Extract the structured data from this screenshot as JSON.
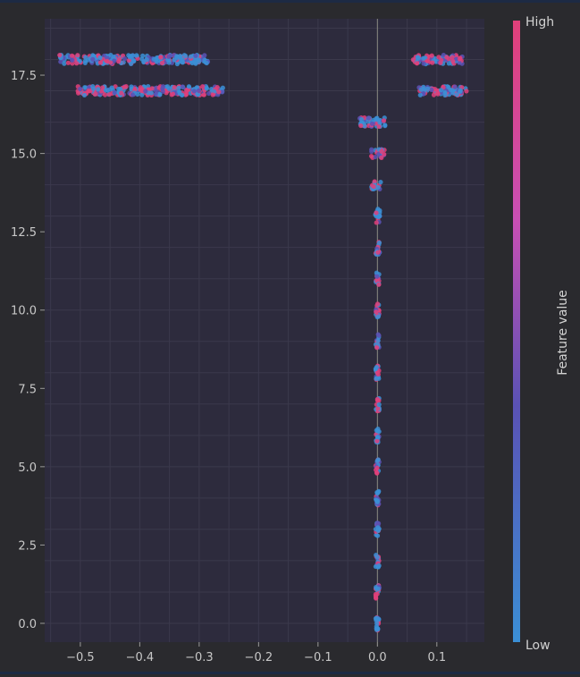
{
  "chart_data": {
    "type": "scatter",
    "title": "",
    "xlabel": "",
    "ylabel": "",
    "xlim": [
      -0.56,
      0.18
    ],
    "ylim": [
      -0.6,
      19.3
    ],
    "x_ticks": [
      -0.5,
      -0.4,
      -0.3,
      -0.2,
      -0.1,
      0.0,
      0.1
    ],
    "x_tick_labels": [
      "−0.5",
      "−0.4",
      "−0.3",
      "−0.2",
      "−0.1",
      "0.0",
      "0.1"
    ],
    "y_ticks": [
      0.0,
      2.5,
      5.0,
      7.5,
      10.0,
      12.5,
      15.0,
      17.5
    ],
    "y_tick_labels": [
      "0.0",
      "2.5",
      "5.0",
      "7.5",
      "10.0",
      "12.5",
      "15.0",
      "17.5"
    ],
    "grid": true,
    "zero_line": true,
    "colorbar": {
      "label": "Feature value",
      "high_label": "High",
      "low_label": "Low",
      "colors": [
        "#3b8fd6",
        "#5a52b5",
        "#c94fb4",
        "#e0407a"
      ]
    },
    "rows": [
      {
        "y": 18,
        "clusters": [
          {
            "x_min": -0.535,
            "x_max": -0.285,
            "mix": 0.25
          },
          {
            "x_min": 0.06,
            "x_max": 0.145,
            "mix": 0.45
          }
        ]
      },
      {
        "y": 17,
        "clusters": [
          {
            "x_min": -0.505,
            "x_max": -0.26,
            "mix": 0.4
          },
          {
            "x_min": 0.07,
            "x_max": 0.15,
            "mix": 0.35
          }
        ]
      },
      {
        "y": 16,
        "clusters": [
          {
            "x_min": -0.03,
            "x_max": 0.015,
            "mix": 0.25
          }
        ]
      },
      {
        "y": 15,
        "clusters": [
          {
            "x_min": -0.012,
            "x_max": 0.012,
            "mix": 0.5
          }
        ]
      },
      {
        "y": 14,
        "clusters": [
          {
            "x_min": -0.01,
            "x_max": 0.006,
            "mix": 0.5
          }
        ]
      },
      {
        "y": 13,
        "clusters": [
          {
            "x_min": -0.004,
            "x_max": 0.004,
            "mix": 0.3
          }
        ]
      },
      {
        "y": 12,
        "clusters": [
          {
            "x_min": -0.004,
            "x_max": 0.004,
            "mix": 0.3
          }
        ]
      },
      {
        "y": 11,
        "clusters": [
          {
            "x_min": -0.003,
            "x_max": 0.003,
            "mix": 0.3
          }
        ]
      },
      {
        "y": 10,
        "clusters": [
          {
            "x_min": -0.003,
            "x_max": 0.003,
            "mix": 0.3
          }
        ]
      },
      {
        "y": 9,
        "clusters": [
          {
            "x_min": -0.003,
            "x_max": 0.003,
            "mix": 0.35
          }
        ]
      },
      {
        "y": 8,
        "clusters": [
          {
            "x_min": -0.003,
            "x_max": 0.003,
            "mix": 0.3
          }
        ]
      },
      {
        "y": 7,
        "clusters": [
          {
            "x_min": -0.003,
            "x_max": 0.003,
            "mix": 0.35
          }
        ]
      },
      {
        "y": 6,
        "clusters": [
          {
            "x_min": -0.003,
            "x_max": 0.003,
            "mix": 0.35
          }
        ]
      },
      {
        "y": 5,
        "clusters": [
          {
            "x_min": -0.003,
            "x_max": 0.003,
            "mix": 0.3
          }
        ]
      },
      {
        "y": 4,
        "clusters": [
          {
            "x_min": -0.003,
            "x_max": 0.003,
            "mix": 0.3
          }
        ]
      },
      {
        "y": 3,
        "clusters": [
          {
            "x_min": -0.003,
            "x_max": 0.003,
            "mix": 0.2
          }
        ]
      },
      {
        "y": 2,
        "clusters": [
          {
            "x_min": -0.003,
            "x_max": 0.003,
            "mix": 0.2
          }
        ]
      },
      {
        "y": 1,
        "clusters": [
          {
            "x_min": -0.003,
            "x_max": 0.003,
            "mix": 0.2
          }
        ]
      },
      {
        "y": 0,
        "clusters": [
          {
            "x_min": -0.003,
            "x_max": 0.003,
            "mix": 0.2
          }
        ]
      }
    ]
  }
}
